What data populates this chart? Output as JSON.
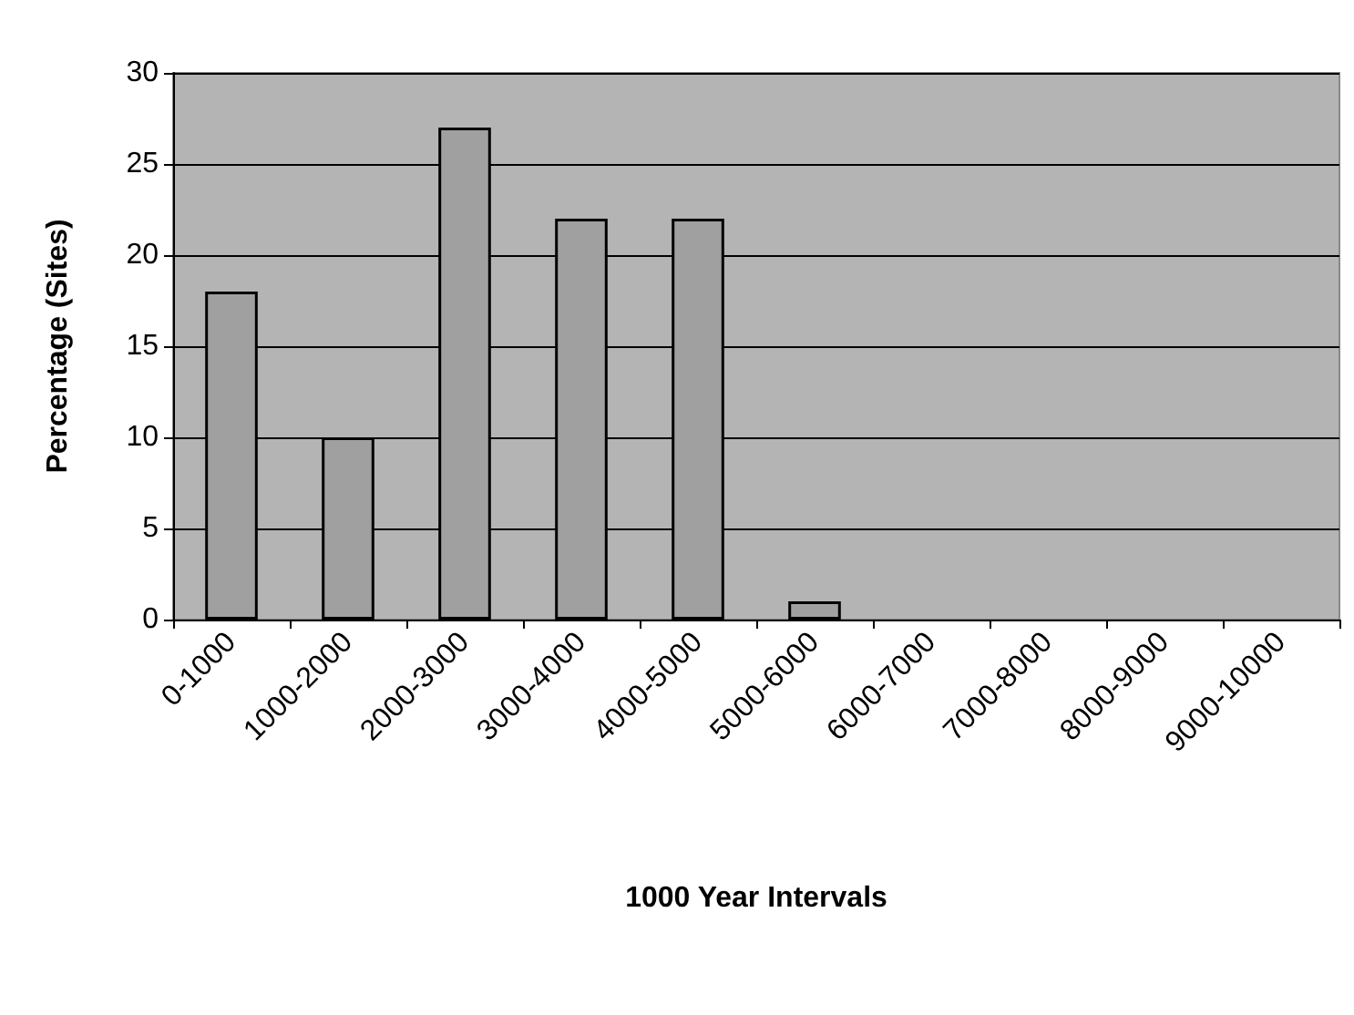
{
  "chart_data": {
    "type": "bar",
    "xlabel": "1000 Year Intervals",
    "ylabel": "Percentage (Sites)",
    "categories": [
      "0-1000",
      "1000-2000",
      "2000-3000",
      "3000-4000",
      "4000-5000",
      "5000-6000",
      "6000-7000",
      "7000-8000",
      "8000-9000",
      "9000-10000"
    ],
    "values": [
      18,
      10,
      27,
      22,
      22,
      1,
      0,
      0,
      0,
      0
    ],
    "color": "#a0a0a0",
    "ylim": [
      0,
      30
    ],
    "yticks": [
      0,
      5,
      10,
      15,
      20,
      25,
      30
    ],
    "grid": "y"
  }
}
